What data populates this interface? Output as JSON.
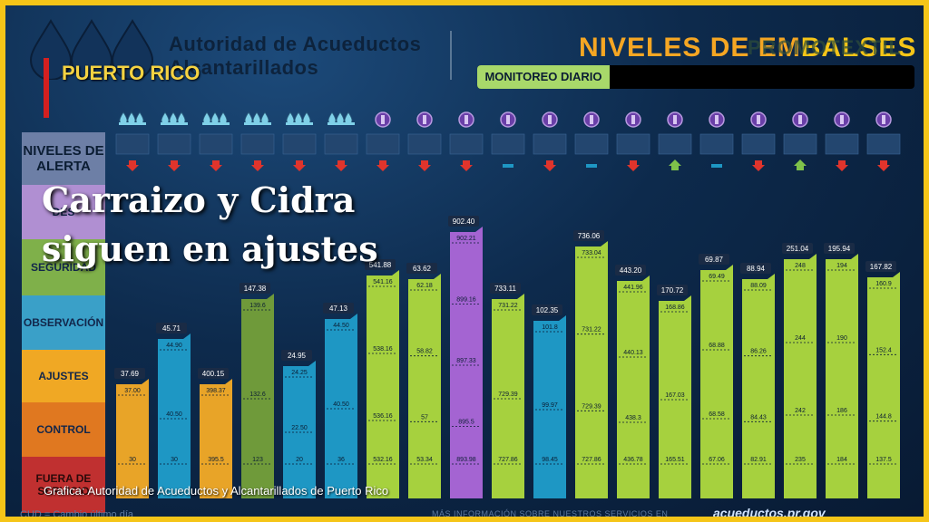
{
  "header": {
    "org_name_line1": "Autoridad de Acueductos",
    "org_name_line2": "Alcantarillados",
    "region_label": "PUERTO RICO",
    "title_prefix": "NIVELES DE EM",
    "title_suffix": "BALSES",
    "watermark": "PROMOTEXTIL",
    "monitor_label": "MONITOREO DIARIO"
  },
  "alert_levels": {
    "head_line1": "NIVELES DE",
    "head_line2": "ALERTA",
    "desborde": "DES",
    "seguridad": "SEGURIDAD",
    "observacion": "OBSERVACIÓN",
    "ajustes": "AJUSTES",
    "control": "CONTROL",
    "fuera": "FUERA DE SERVICIO"
  },
  "overlay": {
    "headline_line1": "Carraizo y Cidra",
    "headline_line2": "siguen en ajustes",
    "credit": "Grafica: Autoridad de Acueductos y Alcantarillados de Puerto Rico"
  },
  "footer": {
    "cud": "CUD = Cambio último día",
    "more": "MÁS INFORMACIÓN SOBRE NUESTROS SERVICIOS EN",
    "url": "acueductos.pr.gov"
  },
  "colors": {
    "orange": "#e8a428",
    "blue": "#1e97c4",
    "olive": "#6f9a3a",
    "lime": "#a6d13e",
    "purple": "#a464d2",
    "arrow_down": "#e0342c",
    "arrow_up": "#7ec24a",
    "dash_neutral": "#1e97c4"
  },
  "chart_data": {
    "type": "bar",
    "bars": [
      {
        "top": "37.69",
        "levels": [
          "37.00",
          "30"
        ],
        "color": "orange",
        "trend": "down",
        "icon": "drops-icon",
        "value": 37.69
      },
      {
        "top": "45.71",
        "levels": [
          "44.90",
          "40.50",
          "30"
        ],
        "color": "blue",
        "trend": "down",
        "icon": "drops-icon",
        "value": 45.71
      },
      {
        "top": "400.15",
        "levels": [
          "398.37",
          "395.5"
        ],
        "color": "orange",
        "trend": "down",
        "icon": "drops-icon",
        "value": 400.15
      },
      {
        "top": "147.38",
        "levels": [
          "139.6",
          "132.6",
          "123"
        ],
        "color": "olive",
        "trend": "down",
        "icon": "drops-icon",
        "value": 147.38
      },
      {
        "top": "24.95",
        "levels": [
          "24.25",
          "22.50",
          "20"
        ],
        "color": "blue",
        "trend": "down",
        "icon": "drops-icon",
        "value": 24.95
      },
      {
        "top": "47.13",
        "levels": [
          "44.50",
          "40.50",
          "36"
        ],
        "color": "blue",
        "trend": "down",
        "icon": "drops-icon",
        "value": 47.13
      },
      {
        "top": "541.88",
        "levels": [
          "541.16",
          "538.16",
          "536.16",
          "532.16"
        ],
        "color": "lime",
        "trend": "down",
        "icon": "valve-icon",
        "value": 541.88
      },
      {
        "top": "63.62",
        "levels": [
          "62.18",
          "58.82",
          "57",
          "53.34"
        ],
        "color": "lime",
        "trend": "down",
        "icon": "valve-icon",
        "value": 63.62
      },
      {
        "top": "902.40",
        "levels": [
          "902.21",
          "899.16",
          "897.33",
          "895.5",
          "893.98"
        ],
        "color": "purple",
        "trend": "down",
        "icon": "valve-icon",
        "value": 902.4
      },
      {
        "top": "733.11",
        "levels": [
          "731.22",
          "729.39",
          "727.86"
        ],
        "color": "lime",
        "trend": "same",
        "icon": "valve-icon",
        "value": 733.11
      },
      {
        "top": "102.35",
        "levels": [
          "101.8",
          "99.97",
          "98.45"
        ],
        "color": "blue",
        "trend": "down",
        "icon": "valve-icon",
        "value": 102.35
      },
      {
        "top": "736.06",
        "levels": [
          "733.04",
          "731.22",
          "729.39",
          "727.86"
        ],
        "color": "lime",
        "trend": "same",
        "icon": "valve-icon",
        "value": 736.06
      },
      {
        "top": "443.20",
        "levels": [
          "441.96",
          "440.13",
          "438.3",
          "436.78"
        ],
        "color": "lime",
        "trend": "down",
        "icon": "valve-icon",
        "value": 443.2
      },
      {
        "top": "170.72",
        "levels": [
          "168.86",
          "167.03",
          "165.51"
        ],
        "color": "lime",
        "trend": "up",
        "icon": "valve-icon",
        "value": 170.72
      },
      {
        "top": "69.87",
        "levels": [
          "69.49",
          "68.88",
          "68.58",
          "67.06"
        ],
        "color": "lime",
        "trend": "same",
        "icon": "valve-icon",
        "value": 69.87
      },
      {
        "top": "88.94",
        "levels": [
          "88.09",
          "86.26",
          "84.43",
          "82.91"
        ],
        "color": "lime",
        "trend": "down",
        "icon": "valve-icon",
        "value": 88.94
      },
      {
        "top": "251.04",
        "levels": [
          "248",
          "244",
          "242",
          "235"
        ],
        "color": "lime",
        "trend": "up",
        "icon": "valve-icon",
        "value": 251.04
      },
      {
        "top": "195.94",
        "levels": [
          "194",
          "190",
          "186",
          "184"
        ],
        "color": "lime",
        "trend": "down",
        "icon": "valve-icon",
        "value": 195.94
      },
      {
        "top": "167.82",
        "levels": [
          "160.9",
          "152.4",
          "144.8",
          "137.5"
        ],
        "color": "lime",
        "trend": "down",
        "icon": "valve-icon",
        "value": 167.82
      }
    ]
  }
}
